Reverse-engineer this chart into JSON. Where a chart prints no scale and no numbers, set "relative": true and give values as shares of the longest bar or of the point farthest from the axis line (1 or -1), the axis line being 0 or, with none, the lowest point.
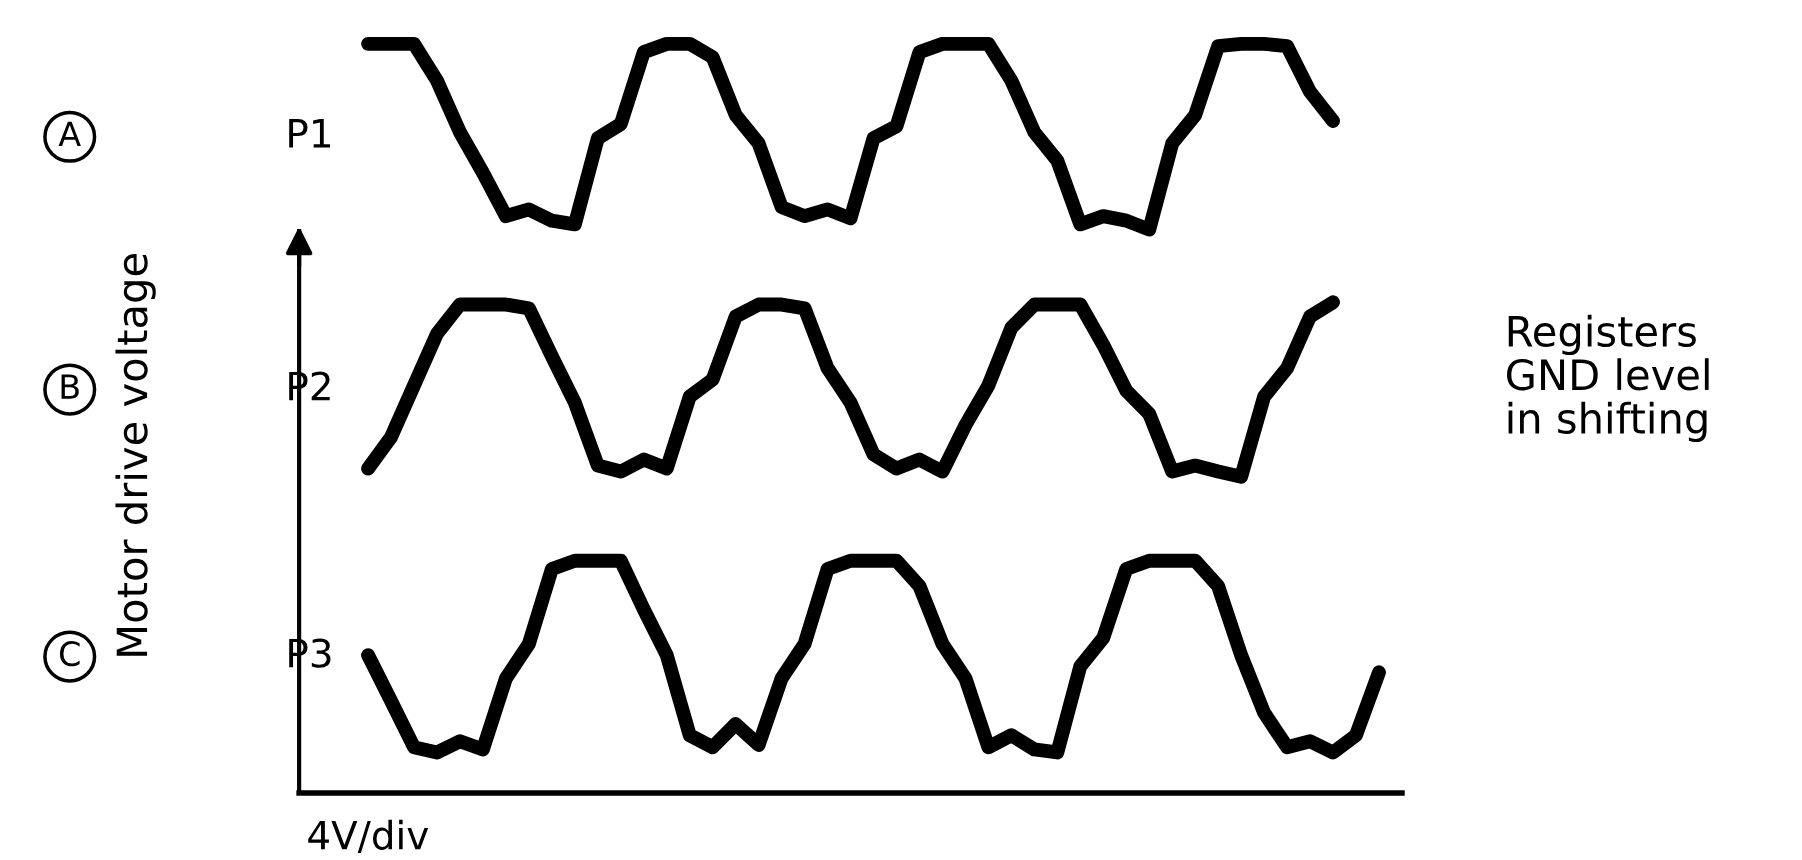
{
  "chart_data": {
    "type": "line",
    "relative": true,
    "ylabel": "Motor drive voltage",
    "legend": false,
    "line_style": "solid",
    "categories": [
      null,
      null,
      null,
      null,
      null,
      null,
      null,
      null,
      null,
      null,
      null,
      null,
      null,
      null,
      null,
      null,
      null,
      null,
      null,
      null,
      null,
      null,
      null,
      null,
      null,
      null,
      null,
      null,
      null,
      null,
      null,
      null,
      null,
      null,
      null,
      null,
      null,
      null,
      null,
      null,
      null,
      null,
      null,
      null,
      null,
      null,
      null,
      null,
      null
    ],
    "series": [
      {
        "name": "P1",
        "color": "#000000",
        "values": [
          null,
          null,
          null,
          1.0,
          1.0,
          1.0,
          0.951,
          0.882,
          0.828,
          0.77,
          0.779,
          0.764,
          0.759,
          0.874,
          0.893,
          0.989,
          1.0,
          1.0,
          0.982,
          0.905,
          0.867,
          0.782,
          0.77,
          0.779,
          0.767,
          0.874,
          0.89,
          0.989,
          1.0,
          1.0,
          1.0,
          0.951,
          0.882,
          0.844,
          0.759,
          0.77,
          0.764,
          0.752,
          0.867,
          0.905,
          0.997,
          1.0,
          1.0,
          0.997,
          0.936,
          0.897,
          null,
          null,
          null
        ]
      },
      {
        "name": "P2",
        "color": "#000000",
        "values": [
          null,
          null,
          null,
          0.433,
          0.475,
          0.544,
          0.613,
          0.652,
          0.652,
          0.652,
          0.647,
          0.583,
          0.521,
          0.437,
          0.429,
          0.445,
          0.433,
          0.529,
          0.552,
          0.636,
          0.652,
          0.652,
          0.647,
          0.567,
          0.521,
          0.452,
          0.433,
          0.445,
          0.429,
          0.491,
          0.544,
          0.621,
          0.652,
          0.652,
          0.652,
          0.598,
          0.537,
          0.506,
          0.429,
          0.437,
          0.429,
          0.422,
          0.529,
          0.567,
          0.636,
          0.655,
          null,
          null,
          null
        ]
      },
      {
        "name": "P3",
        "color": "#000000",
        "values": [
          null,
          null,
          null,
          0.184,
          0.123,
          0.061,
          0.054,
          0.069,
          0.058,
          0.153,
          0.199,
          0.299,
          0.31,
          0.31,
          0.31,
          0.245,
          0.184,
          0.077,
          0.061,
          0.092,
          0.064,
          0.153,
          0.199,
          0.299,
          0.31,
          0.31,
          0.31,
          0.276,
          0.199,
          0.153,
          0.061,
          0.077,
          0.058,
          0.054,
          0.169,
          0.207,
          0.299,
          0.31,
          0.31,
          0.31,
          0.276,
          0.184,
          0.107,
          0.061,
          0.069,
          0.054,
          0.077,
          0.161,
          null
        ]
      }
    ],
    "annotations": [
      "A",
      "B",
      "C",
      "Registers\nGND level\nin shifting",
      "4V/div"
    ]
  }
}
